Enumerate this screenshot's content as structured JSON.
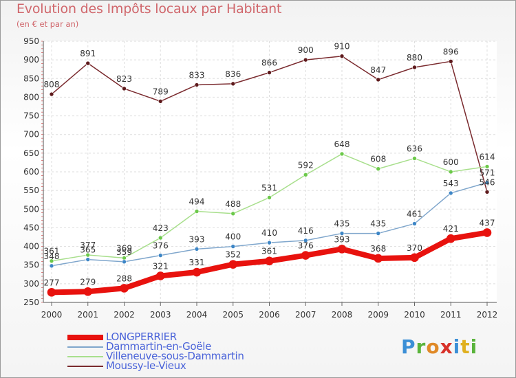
{
  "title": "Evolution des Impôts locaux par Habitant",
  "subtitle": "(en € et par an)",
  "logo": {
    "letters": [
      "P",
      "r",
      "o",
      "x",
      "i",
      "t",
      "i"
    ],
    "colors": [
      "#3b8fd6",
      "#5ab43c",
      "#e08a28",
      "#d8322a",
      "#3b8fd6",
      "#e0b020",
      "#5ab43c"
    ]
  },
  "chart_data": {
    "type": "line",
    "title": "Evolution des Impôts locaux par Habitant",
    "subtitle": "(en € et par an)",
    "categories": [
      "2000",
      "2001",
      "2002",
      "2003",
      "2004",
      "2005",
      "2006",
      "2007",
      "2008",
      "2009",
      "2010",
      "2011",
      "2012"
    ],
    "ylim": [
      250,
      950
    ],
    "yticks": [
      250,
      300,
      350,
      400,
      450,
      500,
      550,
      600,
      650,
      700,
      750,
      800,
      850,
      900,
      950
    ],
    "legend_position": "bottom-left",
    "series": [
      {
        "name": "LONGPERRIER",
        "color": "#e8120e",
        "marker": "#e8120e",
        "width": 8,
        "labels": [
          "277",
          "279",
          "288",
          "321",
          "331",
          "352",
          "361",
          "376",
          "393",
          "368",
          "370",
          "421",
          "437"
        ],
        "values": [
          277,
          279,
          288,
          321,
          331,
          352,
          361,
          376,
          393,
          368,
          370,
          421,
          437
        ]
      },
      {
        "name": "Dammartin-en-Goële",
        "color": "#7fa6cc",
        "marker": "#3d86c6",
        "width": 1.5,
        "labels": [
          "348",
          "365",
          "359",
          "376",
          "393",
          "400",
          "410",
          "416",
          "435",
          "435",
          "461",
          "543",
          "571"
        ],
        "values": [
          348,
          365,
          359,
          376,
          393,
          400,
          410,
          416,
          435,
          435,
          461,
          543,
          571
        ]
      },
      {
        "name": "Villeneuve-sous-Dammartin",
        "color": "#a8df8c",
        "marker": "#6cc94a",
        "width": 1.5,
        "labels": [
          "361",
          "377",
          "369",
          "423",
          "494",
          "488",
          "531",
          "592",
          "648",
          "608",
          "636",
          "600",
          "614"
        ],
        "values": [
          361,
          377,
          369,
          423,
          494,
          488,
          531,
          592,
          648,
          608,
          636,
          600,
          614
        ]
      },
      {
        "name": "Moussy-le-Vieux",
        "color": "#7a2a2e",
        "marker": "#5e1a1c",
        "width": 1.5,
        "labels": [
          "808",
          "891",
          "823",
          "789",
          "833",
          "836",
          "866",
          "900",
          "910",
          "847",
          "880",
          "896",
          "546"
        ],
        "values": [
          808,
          891,
          823,
          789,
          833,
          836,
          866,
          900,
          910,
          847,
          880,
          896,
          546
        ]
      }
    ]
  }
}
